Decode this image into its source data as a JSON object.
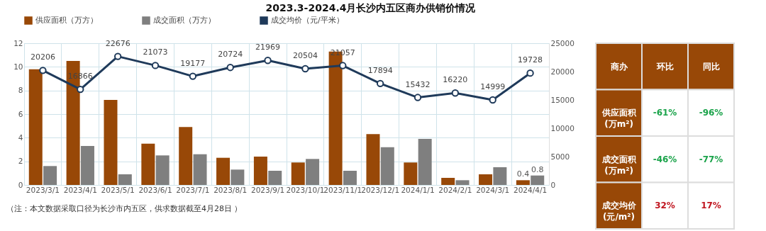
{
  "chart_data": [
    {
      "type": "bar",
      "title": "2023.3-2024.4月长沙内五区商办供销价情况",
      "categories": [
        "2023/3/1",
        "2023/4/1",
        "2023/5/1",
        "2023/6/1",
        "2023/7/1",
        "2023/8/1",
        "2023/9/1",
        "2023/10/1",
        "2023/11/1",
        "2023/12/1",
        "2024/1/1",
        "2024/2/1",
        "2024/3/1",
        "2024/4/1"
      ],
      "series": [
        {
          "name": "供应面积（万方）",
          "color": "#984807",
          "values": [
            9.8,
            10.5,
            7.2,
            3.5,
            4.9,
            2.3,
            2.4,
            1.9,
            11.3,
            4.3,
            1.9,
            0.6,
            0.9,
            0.4
          ],
          "value_labels": [
            null,
            null,
            null,
            null,
            null,
            null,
            null,
            null,
            null,
            null,
            null,
            null,
            null,
            "0.4"
          ]
        },
        {
          "name": "成交面积（万方）",
          "color": "#7f7f7f",
          "values": [
            1.6,
            3.3,
            0.9,
            2.5,
            2.6,
            1.3,
            1.2,
            2.2,
            1.2,
            3.2,
            3.9,
            0.4,
            1.5,
            0.8
          ],
          "value_labels": [
            null,
            null,
            null,
            null,
            null,
            null,
            null,
            null,
            null,
            null,
            null,
            null,
            null,
            "0.8"
          ]
        },
        {
          "name": "成交均价（元/平米）",
          "type": "line",
          "axis": "y2",
          "color": "#1f3a5a",
          "values": [
            20206,
            16866,
            22676,
            21073,
            19177,
            20724,
            21969,
            20504,
            21057,
            17894,
            15432,
            16220,
            14999,
            19728
          ],
          "value_labels": [
            "20206",
            "16866",
            "22676",
            "21073",
            "19177",
            "20724",
            "21969",
            "20504",
            "21057",
            "17894",
            "15432",
            "16220",
            "14999",
            "19728"
          ]
        }
      ],
      "ylim": [
        0,
        12
      ],
      "yticks": [
        0,
        2,
        4,
        6,
        8,
        10,
        12
      ],
      "y2lim": [
        0,
        25000
      ],
      "y2ticks": [
        0,
        5000,
        10000,
        15000,
        20000,
        25000
      ],
      "grid": true,
      "legend": "top",
      "marker": "circle",
      "line_style": "solid",
      "annotations": [
        "（注：本文数据采取口径为长沙市内五区，供求数据截至4月28日 ）"
      ]
    },
    {
      "type": "other",
      "title": "商办",
      "categories": [
        "环比",
        "同比"
      ],
      "y_categories": [
        "供应面积\n(万m²)",
        "成交面积\n(万m²)",
        "成交均价\n(元/m²)"
      ],
      "colors": [
        [
          "#1aa34a",
          "#1aa34a"
        ],
        [
          "#1aa34a",
          "#1aa34a"
        ],
        [
          "#c0141e",
          "#c0141e"
        ]
      ],
      "cell_labels": [
        [
          "-61%",
          "-96%"
        ],
        [
          "-46%",
          "-77%"
        ],
        [
          "32%",
          "17%"
        ]
      ]
    }
  ]
}
